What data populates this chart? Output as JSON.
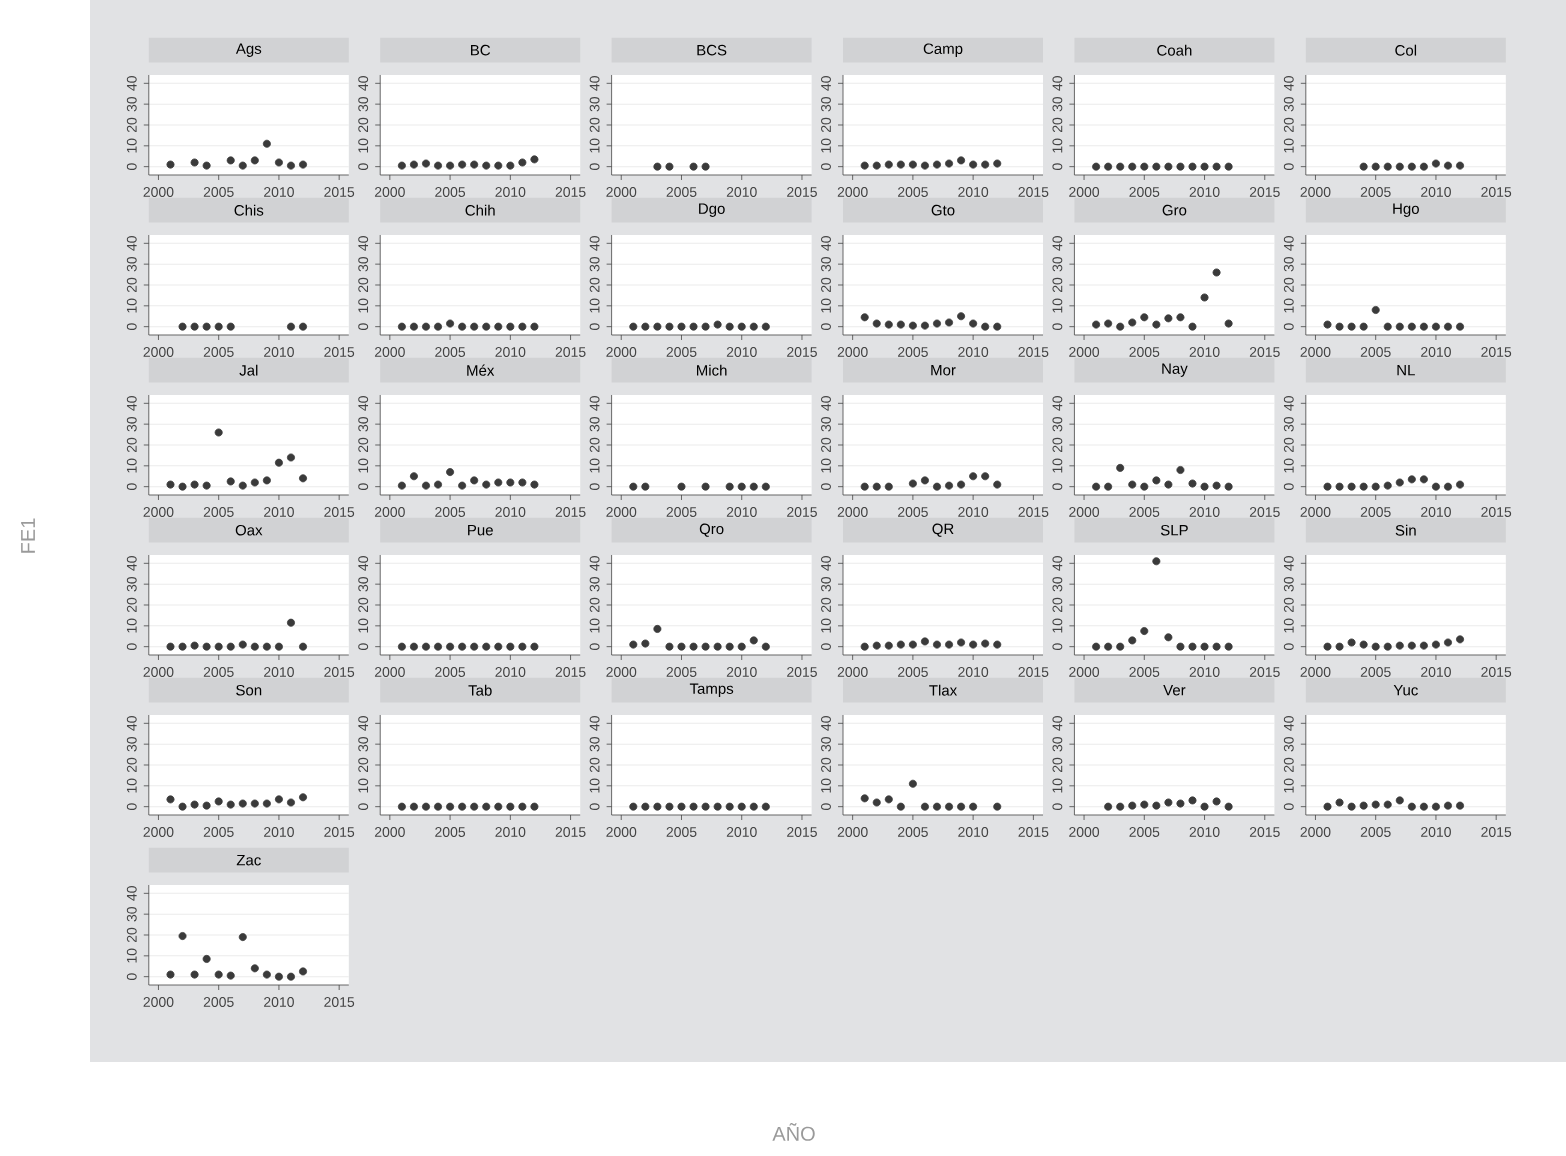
{
  "chart_data": [
    {
      "type": "scatter",
      "title": "Ags",
      "x": [
        2001,
        2003,
        2004,
        2006,
        2007,
        2008,
        2009,
        2010,
        2011,
        2012
      ],
      "values": [
        1,
        2,
        0.5,
        3,
        0.5,
        3,
        11,
        2,
        0.5,
        1
      ],
      "color": "#3a3a3a",
      "marker": "circle",
      "grid": "y",
      "xlim": [
        1999.2,
        2015.8
      ],
      "ylim": [
        -4,
        44
      ],
      "xticks": [
        2000,
        2005,
        2010,
        2015
      ],
      "yticks": [
        0,
        10,
        20,
        30,
        40
      ]
    },
    {
      "type": "scatter",
      "title": "BC",
      "x": [
        2001,
        2002,
        2003,
        2004,
        2005,
        2006,
        2007,
        2008,
        2009,
        2010,
        2011,
        2012
      ],
      "values": [
        0.5,
        1,
        1.5,
        0.5,
        0.5,
        1,
        1,
        0.5,
        0.5,
        0.5,
        2,
        3.5
      ],
      "color": "#3a3a3a",
      "marker": "circle",
      "grid": "y",
      "xlim": [
        1999.2,
        2015.8
      ],
      "ylim": [
        -4,
        44
      ],
      "xticks": [
        2000,
        2005,
        2010,
        2015
      ],
      "yticks": [
        0,
        10,
        20,
        30,
        40
      ]
    },
    {
      "type": "scatter",
      "title": "BCS",
      "x": [
        2003,
        2004,
        2006,
        2007
      ],
      "values": [
        0,
        0,
        0,
        0
      ],
      "color": "#3a3a3a",
      "marker": "circle",
      "grid": "y",
      "xlim": [
        1999.2,
        2015.8
      ],
      "ylim": [
        -4,
        44
      ],
      "xticks": [
        2000,
        2005,
        2010,
        2015
      ],
      "yticks": [
        0,
        10,
        20,
        30,
        40
      ]
    },
    {
      "type": "scatter",
      "title": "Camp",
      "x": [
        2001,
        2002,
        2003,
        2004,
        2005,
        2006,
        2007,
        2008,
        2009,
        2010,
        2011,
        2012
      ],
      "values": [
        0.5,
        0.5,
        1,
        1,
        1,
        0.5,
        1,
        1.5,
        3,
        1,
        1,
        1.5
      ],
      "color": "#3a3a3a",
      "marker": "circle",
      "grid": "y",
      "xlim": [
        1999.2,
        2015.8
      ],
      "ylim": [
        -4,
        44
      ],
      "xticks": [
        2000,
        2005,
        2010,
        2015
      ],
      "yticks": [
        0,
        10,
        20,
        30,
        40
      ]
    },
    {
      "type": "scatter",
      "title": "Coah",
      "x": [
        2001,
        2002,
        2003,
        2004,
        2005,
        2006,
        2007,
        2008,
        2009,
        2010,
        2011,
        2012
      ],
      "values": [
        0,
        0,
        0,
        0,
        0,
        0,
        0,
        0,
        0,
        0,
        0,
        0
      ],
      "color": "#3a3a3a",
      "marker": "circle",
      "grid": "y",
      "xlim": [
        1999.2,
        2015.8
      ],
      "ylim": [
        -4,
        44
      ],
      "xticks": [
        2000,
        2005,
        2010,
        2015
      ],
      "yticks": [
        0,
        10,
        20,
        30,
        40
      ]
    },
    {
      "type": "scatter",
      "title": "Col",
      "x": [
        2004,
        2005,
        2006,
        2007,
        2008,
        2009,
        2010,
        2011,
        2012
      ],
      "values": [
        0,
        0,
        0,
        0,
        0,
        0,
        1.5,
        0.5,
        0.5
      ],
      "color": "#3a3a3a",
      "marker": "circle",
      "grid": "y",
      "xlim": [
        1999.2,
        2015.8
      ],
      "ylim": [
        -4,
        44
      ],
      "xticks": [
        2000,
        2005,
        2010,
        2015
      ],
      "yticks": [
        0,
        10,
        20,
        30,
        40
      ]
    },
    {
      "type": "scatter",
      "title": "Chis",
      "x": [
        2002,
        2003,
        2004,
        2005,
        2006,
        2011,
        2012
      ],
      "values": [
        0,
        0,
        0,
        0,
        0,
        0,
        0
      ],
      "color": "#3a3a3a",
      "marker": "circle",
      "grid": "y",
      "xlim": [
        1999.2,
        2015.8
      ],
      "ylim": [
        -4,
        44
      ],
      "xticks": [
        2000,
        2005,
        2010,
        2015
      ],
      "yticks": [
        0,
        10,
        20,
        30,
        40
      ]
    },
    {
      "type": "scatter",
      "title": "Chih",
      "x": [
        2001,
        2002,
        2003,
        2004,
        2005,
        2006,
        2007,
        2008,
        2009,
        2010,
        2011,
        2012
      ],
      "values": [
        0,
        0,
        0,
        0,
        1.5,
        0,
        0,
        0,
        0,
        0,
        0,
        0
      ],
      "color": "#3a3a3a",
      "marker": "circle",
      "grid": "y",
      "xlim": [
        1999.2,
        2015.8
      ],
      "ylim": [
        -4,
        44
      ],
      "xticks": [
        2000,
        2005,
        2010,
        2015
      ],
      "yticks": [
        0,
        10,
        20,
        30,
        40
      ]
    },
    {
      "type": "scatter",
      "title": "Dgo",
      "x": [
        2001,
        2002,
        2003,
        2004,
        2005,
        2006,
        2007,
        2008,
        2009,
        2010,
        2011,
        2012
      ],
      "values": [
        0,
        0,
        0,
        0,
        0,
        0,
        0,
        1,
        0,
        0,
        0,
        0
      ],
      "color": "#3a3a3a",
      "marker": "circle",
      "grid": "y",
      "xlim": [
        1999.2,
        2015.8
      ],
      "ylim": [
        -4,
        44
      ],
      "xticks": [
        2000,
        2005,
        2010,
        2015
      ],
      "yticks": [
        0,
        10,
        20,
        30,
        40
      ]
    },
    {
      "type": "scatter",
      "title": "Gto",
      "x": [
        2001,
        2002,
        2003,
        2004,
        2005,
        2006,
        2007,
        2008,
        2009,
        2010,
        2011,
        2012
      ],
      "values": [
        4.5,
        1.5,
        1,
        1,
        0.5,
        0.5,
        1.5,
        2,
        5,
        1.5,
        0,
        0
      ],
      "color": "#3a3a3a",
      "marker": "circle",
      "grid": "y",
      "xlim": [
        1999.2,
        2015.8
      ],
      "ylim": [
        -4,
        44
      ],
      "xticks": [
        2000,
        2005,
        2010,
        2015
      ],
      "yticks": [
        0,
        10,
        20,
        30,
        40
      ]
    },
    {
      "type": "scatter",
      "title": "Gro",
      "x": [
        2001,
        2002,
        2003,
        2004,
        2005,
        2006,
        2007,
        2008,
        2009,
        2010,
        2011,
        2012
      ],
      "values": [
        1,
        1.5,
        0,
        2,
        4.5,
        1,
        4,
        4.5,
        0,
        14,
        26,
        1.5
      ],
      "color": "#3a3a3a",
      "marker": "circle",
      "grid": "y",
      "xlim": [
        1999.2,
        2015.8
      ],
      "ylim": [
        -4,
        44
      ],
      "xticks": [
        2000,
        2005,
        2010,
        2015
      ],
      "yticks": [
        0,
        10,
        20,
        30,
        40
      ]
    },
    {
      "type": "scatter",
      "title": "Hgo",
      "x": [
        2001,
        2002,
        2003,
        2004,
        2005,
        2006,
        2007,
        2008,
        2009,
        2010,
        2011,
        2012
      ],
      "values": [
        1,
        0,
        0,
        0,
        8,
        0,
        0,
        0,
        0,
        0,
        0,
        0
      ],
      "color": "#3a3a3a",
      "marker": "circle",
      "grid": "y",
      "xlim": [
        1999.2,
        2015.8
      ],
      "ylim": [
        -4,
        44
      ],
      "xticks": [
        2000,
        2005,
        2010,
        2015
      ],
      "yticks": [
        0,
        10,
        20,
        30,
        40
      ]
    },
    {
      "type": "scatter",
      "title": "Jal",
      "ylabel": "FE1",
      "x": [
        2001,
        2002,
        2003,
        2004,
        2005,
        2006,
        2007,
        2008,
        2009,
        2010,
        2011,
        2012
      ],
      "values": [
        1,
        0,
        1,
        0.5,
        26,
        2.5,
        0.5,
        2,
        3,
        11.5,
        14,
        4
      ],
      "color": "#3a3a3a",
      "marker": "circle",
      "grid": "y",
      "xlim": [
        1999.2,
        2015.8
      ],
      "ylim": [
        -4,
        44
      ],
      "xticks": [
        2000,
        2005,
        2010,
        2015
      ],
      "yticks": [
        0,
        10,
        20,
        30,
        40
      ]
    },
    {
      "type": "scatter",
      "title": "Méx",
      "x": [
        2001,
        2002,
        2003,
        2004,
        2005,
        2006,
        2007,
        2008,
        2009,
        2010,
        2011,
        2012
      ],
      "values": [
        0.5,
        5,
        0.5,
        1,
        7,
        0.5,
        3,
        1,
        2,
        2,
        2,
        1
      ],
      "color": "#3a3a3a",
      "marker": "circle",
      "grid": "y",
      "xlim": [
        1999.2,
        2015.8
      ],
      "ylim": [
        -4,
        44
      ],
      "xticks": [
        2000,
        2005,
        2010,
        2015
      ],
      "yticks": [
        0,
        10,
        20,
        30,
        40
      ]
    },
    {
      "type": "scatter",
      "title": "Mich",
      "x": [
        2001,
        2002,
        2005,
        2007,
        2009,
        2010,
        2011,
        2012
      ],
      "values": [
        0,
        0,
        0,
        0,
        0,
        0,
        0,
        0
      ],
      "color": "#3a3a3a",
      "marker": "circle",
      "grid": "y",
      "xlim": [
        1999.2,
        2015.8
      ],
      "ylim": [
        -4,
        44
      ],
      "xticks": [
        2000,
        2005,
        2010,
        2015
      ],
      "yticks": [
        0,
        10,
        20,
        30,
        40
      ]
    },
    {
      "type": "scatter",
      "title": "Mor",
      "x": [
        2001,
        2002,
        2003,
        2005,
        2006,
        2007,
        2008,
        2009,
        2010,
        2011,
        2012
      ],
      "values": [
        0,
        0,
        0,
        1.5,
        3,
        0,
        0.5,
        1,
        5,
        5,
        1
      ],
      "color": "#3a3a3a",
      "marker": "circle",
      "grid": "y",
      "xlim": [
        1999.2,
        2015.8
      ],
      "ylim": [
        -4,
        44
      ],
      "xticks": [
        2000,
        2005,
        2010,
        2015
      ],
      "yticks": [
        0,
        10,
        20,
        30,
        40
      ]
    },
    {
      "type": "scatter",
      "title": "Nay",
      "x": [
        2001,
        2002,
        2003,
        2004,
        2005,
        2006,
        2007,
        2008,
        2009,
        2010,
        2011,
        2012
      ],
      "values": [
        0,
        0,
        9,
        1,
        0,
        3,
        1,
        8,
        1.5,
        0,
        0.5,
        0
      ],
      "color": "#3a3a3a",
      "marker": "circle",
      "grid": "y",
      "xlim": [
        1999.2,
        2015.8
      ],
      "ylim": [
        -4,
        44
      ],
      "xticks": [
        2000,
        2005,
        2010,
        2015
      ],
      "yticks": [
        0,
        10,
        20,
        30,
        40
      ]
    },
    {
      "type": "scatter",
      "title": "NL",
      "x": [
        2001,
        2002,
        2003,
        2004,
        2005,
        2006,
        2007,
        2008,
        2009,
        2010,
        2011,
        2012
      ],
      "values": [
        0,
        0,
        0,
        0,
        0,
        0.5,
        2,
        3.5,
        3.5,
        0,
        0,
        1
      ],
      "color": "#3a3a3a",
      "marker": "circle",
      "grid": "y",
      "xlim": [
        1999.2,
        2015.8
      ],
      "ylim": [
        -4,
        44
      ],
      "xticks": [
        2000,
        2005,
        2010,
        2015
      ],
      "yticks": [
        0,
        10,
        20,
        30,
        40
      ]
    },
    {
      "type": "scatter",
      "title": "Oax",
      "x": [
        2001,
        2002,
        2003,
        2004,
        2005,
        2006,
        2007,
        2008,
        2009,
        2010,
        2011,
        2012
      ],
      "values": [
        0,
        0,
        0.5,
        0,
        0,
        0,
        1,
        0,
        0,
        0,
        11.5,
        0
      ],
      "color": "#3a3a3a",
      "marker": "circle",
      "grid": "y",
      "xlim": [
        1999.2,
        2015.8
      ],
      "ylim": [
        -4,
        44
      ],
      "xticks": [
        2000,
        2005,
        2010,
        2015
      ],
      "yticks": [
        0,
        10,
        20,
        30,
        40
      ]
    },
    {
      "type": "scatter",
      "title": "Pue",
      "x": [
        2001,
        2002,
        2003,
        2004,
        2005,
        2006,
        2007,
        2008,
        2009,
        2010,
        2011,
        2012
      ],
      "values": [
        0,
        0,
        0,
        0,
        0,
        0,
        0,
        0,
        0,
        0,
        0,
        0
      ],
      "color": "#3a3a3a",
      "marker": "circle",
      "grid": "y",
      "xlim": [
        1999.2,
        2015.8
      ],
      "ylim": [
        -4,
        44
      ],
      "xticks": [
        2000,
        2005,
        2010,
        2015
      ],
      "yticks": [
        0,
        10,
        20,
        30,
        40
      ]
    },
    {
      "type": "scatter",
      "title": "Qro",
      "x": [
        2001,
        2002,
        2003,
        2004,
        2005,
        2006,
        2007,
        2008,
        2009,
        2010,
        2011,
        2012
      ],
      "values": [
        1,
        1.5,
        8.5,
        0,
        0,
        0,
        0,
        0,
        0,
        0,
        3,
        0
      ],
      "color": "#3a3a3a",
      "marker": "circle",
      "grid": "y",
      "xlim": [
        1999.2,
        2015.8
      ],
      "ylim": [
        -4,
        44
      ],
      "xticks": [
        2000,
        2005,
        2010,
        2015
      ],
      "yticks": [
        0,
        10,
        20,
        30,
        40
      ]
    },
    {
      "type": "scatter",
      "title": "QR",
      "x": [
        2001,
        2002,
        2003,
        2004,
        2005,
        2006,
        2007,
        2008,
        2009,
        2010,
        2011,
        2012
      ],
      "values": [
        0,
        0.5,
        0.5,
        1,
        1,
        2.5,
        1,
        1,
        2,
        1,
        1.5,
        1
      ],
      "color": "#3a3a3a",
      "marker": "circle",
      "grid": "y",
      "xlim": [
        1999.2,
        2015.8
      ],
      "ylim": [
        -4,
        44
      ],
      "xticks": [
        2000,
        2005,
        2010,
        2015
      ],
      "yticks": [
        0,
        10,
        20,
        30,
        40
      ]
    },
    {
      "type": "scatter",
      "title": "SLP",
      "x": [
        2001,
        2002,
        2003,
        2004,
        2005,
        2006,
        2007,
        2008,
        2009,
        2010,
        2011,
        2012
      ],
      "values": [
        0,
        0,
        0,
        3,
        7.5,
        41,
        4.5,
        0,
        0,
        0,
        0,
        0
      ],
      "color": "#3a3a3a",
      "marker": "circle",
      "grid": "y",
      "xlim": [
        1999.2,
        2015.8
      ],
      "ylim": [
        -4,
        44
      ],
      "xticks": [
        2000,
        2005,
        2010,
        2015
      ],
      "yticks": [
        0,
        10,
        20,
        30,
        40
      ]
    },
    {
      "type": "scatter",
      "title": "Sin",
      "x": [
        2001,
        2002,
        2003,
        2004,
        2005,
        2006,
        2007,
        2008,
        2009,
        2010,
        2011,
        2012
      ],
      "values": [
        0,
        0,
        2,
        1,
        0,
        0,
        0.5,
        0.5,
        0.5,
        1,
        2,
        3.5
      ],
      "color": "#3a3a3a",
      "marker": "circle",
      "grid": "y",
      "xlim": [
        1999.2,
        2015.8
      ],
      "ylim": [
        -4,
        44
      ],
      "xticks": [
        2000,
        2005,
        2010,
        2015
      ],
      "yticks": [
        0,
        10,
        20,
        30,
        40
      ]
    },
    {
      "type": "scatter",
      "title": "Son",
      "x": [
        2001,
        2002,
        2003,
        2004,
        2005,
        2006,
        2007,
        2008,
        2009,
        2010,
        2011,
        2012
      ],
      "values": [
        3.5,
        0,
        1,
        0.5,
        2.5,
        1,
        1.5,
        1.5,
        1.5,
        3.5,
        2,
        4.5
      ],
      "color": "#3a3a3a",
      "marker": "circle",
      "grid": "y",
      "xlim": [
        1999.2,
        2015.8
      ],
      "ylim": [
        -4,
        44
      ],
      "xticks": [
        2000,
        2005,
        2010,
        2015
      ],
      "yticks": [
        0,
        10,
        20,
        30,
        40
      ]
    },
    {
      "type": "scatter",
      "title": "Tab",
      "x": [
        2001,
        2002,
        2003,
        2004,
        2005,
        2006,
        2007,
        2008,
        2009,
        2010,
        2011,
        2012
      ],
      "values": [
        0,
        0,
        0,
        0,
        0,
        0,
        0,
        0,
        0,
        0,
        0,
        0
      ],
      "color": "#3a3a3a",
      "marker": "circle",
      "grid": "y",
      "xlim": [
        1999.2,
        2015.8
      ],
      "ylim": [
        -4,
        44
      ],
      "xticks": [
        2000,
        2005,
        2010,
        2015
      ],
      "yticks": [
        0,
        10,
        20,
        30,
        40
      ]
    },
    {
      "type": "scatter",
      "title": "Tamps",
      "x": [
        2001,
        2002,
        2003,
        2004,
        2005,
        2006,
        2007,
        2008,
        2009,
        2010,
        2011,
        2012
      ],
      "values": [
        0,
        0,
        0,
        0,
        0,
        0,
        0,
        0,
        0,
        0,
        0,
        0
      ],
      "color": "#3a3a3a",
      "marker": "circle",
      "grid": "y",
      "xlim": [
        1999.2,
        2015.8
      ],
      "ylim": [
        -4,
        44
      ],
      "xticks": [
        2000,
        2005,
        2010,
        2015
      ],
      "yticks": [
        0,
        10,
        20,
        30,
        40
      ]
    },
    {
      "type": "scatter",
      "title": "Tlax",
      "xlabel": "AÑO",
      "x": [
        2001,
        2002,
        2003,
        2004,
        2005,
        2006,
        2007,
        2008,
        2009,
        2010,
        2012
      ],
      "values": [
        4,
        2,
        3.5,
        0,
        11,
        0,
        0,
        0,
        0,
        0,
        0
      ],
      "color": "#3a3a3a",
      "marker": "circle",
      "grid": "y",
      "xlim": [
        1999.2,
        2015.8
      ],
      "ylim": [
        -4,
        44
      ],
      "xticks": [
        2000,
        2005,
        2010,
        2015
      ],
      "yticks": [
        0,
        10,
        20,
        30,
        40
      ]
    },
    {
      "type": "scatter",
      "title": "Ver",
      "x": [
        2002,
        2003,
        2004,
        2005,
        2006,
        2007,
        2008,
        2009,
        2010,
        2011,
        2012
      ],
      "values": [
        0,
        0,
        0.5,
        1,
        0.5,
        2,
        1.5,
        3,
        0,
        2.5,
        0
      ],
      "color": "#3a3a3a",
      "marker": "circle",
      "grid": "y",
      "xlim": [
        1999.2,
        2015.8
      ],
      "ylim": [
        -4,
        44
      ],
      "xticks": [
        2000,
        2005,
        2010,
        2015
      ],
      "yticks": [
        0,
        10,
        20,
        30,
        40
      ]
    },
    {
      "type": "scatter",
      "title": "Yuc",
      "x": [
        2001,
        2002,
        2003,
        2004,
        2005,
        2006,
        2007,
        2008,
        2009,
        2010,
        2011,
        2012
      ],
      "values": [
        0,
        2,
        0,
        0.5,
        1,
        1,
        3,
        0,
        0,
        0,
        0.5,
        0.5
      ],
      "color": "#3a3a3a",
      "marker": "circle",
      "grid": "y",
      "xlim": [
        1999.2,
        2015.8
      ],
      "ylim": [
        -4,
        44
      ],
      "xticks": [
        2000,
        2005,
        2010,
        2015
      ],
      "yticks": [
        0,
        10,
        20,
        30,
        40
      ]
    },
    {
      "type": "scatter",
      "title": "Zac",
      "x": [
        2001,
        2002,
        2003,
        2004,
        2005,
        2006,
        2007,
        2008,
        2009,
        2010,
        2011,
        2012
      ],
      "values": [
        1,
        19.5,
        1,
        8.5,
        1,
        0.5,
        19,
        4,
        1,
        0,
        0,
        2.5
      ],
      "color": "#3a3a3a",
      "marker": "circle",
      "grid": "y",
      "xlim": [
        1999.2,
        2015.8
      ],
      "ylim": [
        -4,
        44
      ],
      "xticks": [
        2000,
        2005,
        2010,
        2015
      ],
      "yticks": [
        0,
        10,
        20,
        30,
        40
      ]
    }
  ]
}
